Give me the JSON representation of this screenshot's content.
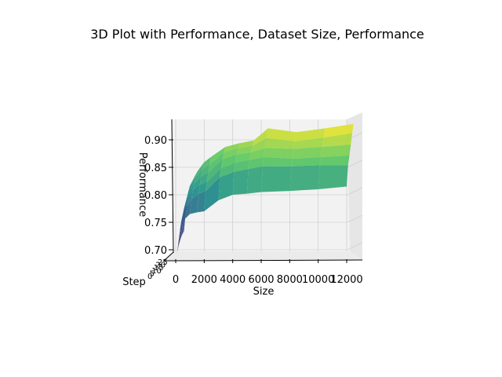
{
  "chart_data": {
    "type": "surface",
    "title": "3D Plot with Performance, Dataset Size, Performance",
    "xlabel": "Size",
    "ylabel": "Step",
    "zlabel": "Performance",
    "xlim": [
      0,
      12000
    ],
    "ylim": [
      0,
      25
    ],
    "zlim": [
      0.69,
      0.92
    ],
    "x_ticks": [
      "0",
      "2000",
      "4000",
      "6000",
      "8000",
      "10000",
      "12000"
    ],
    "y_ticks": [
      "0",
      "5",
      "10",
      "15",
      "20",
      "25"
    ],
    "z_ticks": [
      "0.70",
      "0.75",
      "0.80",
      "0.85",
      "0.90"
    ],
    "colormap": "viridis",
    "grid": true,
    "sizes": [
      100,
      300,
      600,
      1000,
      1500,
      2000,
      3000,
      4000,
      5000,
      6000,
      8000,
      10000,
      12000
    ],
    "series": [
      {
        "values": [
          0.695,
          0.735,
          0.755,
          0.765,
          0.768,
          0.77,
          0.79,
          0.8,
          0.802,
          0.805,
          0.807,
          0.81,
          0.815
        ]
      },
      {
        "values": [
          0.705,
          0.75,
          0.775,
          0.79,
          0.8,
          0.805,
          0.83,
          0.84,
          0.845,
          0.85,
          0.85,
          0.852,
          0.852
        ]
      },
      {
        "values": [
          0.712,
          0.76,
          0.79,
          0.805,
          0.815,
          0.82,
          0.845,
          0.855,
          0.86,
          0.865,
          0.862,
          0.865,
          0.868
        ]
      },
      {
        "values": [
          0.718,
          0.77,
          0.8,
          0.815,
          0.828,
          0.835,
          0.86,
          0.868,
          0.872,
          0.88,
          0.878,
          0.882,
          0.886
        ]
      },
      {
        "values": [
          0.722,
          0.775,
          0.808,
          0.825,
          0.84,
          0.848,
          0.87,
          0.878,
          0.882,
          0.896,
          0.89,
          0.897,
          0.905
        ]
      },
      {
        "values": [
          0.725,
          0.78,
          0.812,
          0.832,
          0.85,
          0.86,
          0.878,
          0.885,
          0.89,
          0.912,
          0.905,
          0.912,
          0.92
        ]
      }
    ]
  }
}
